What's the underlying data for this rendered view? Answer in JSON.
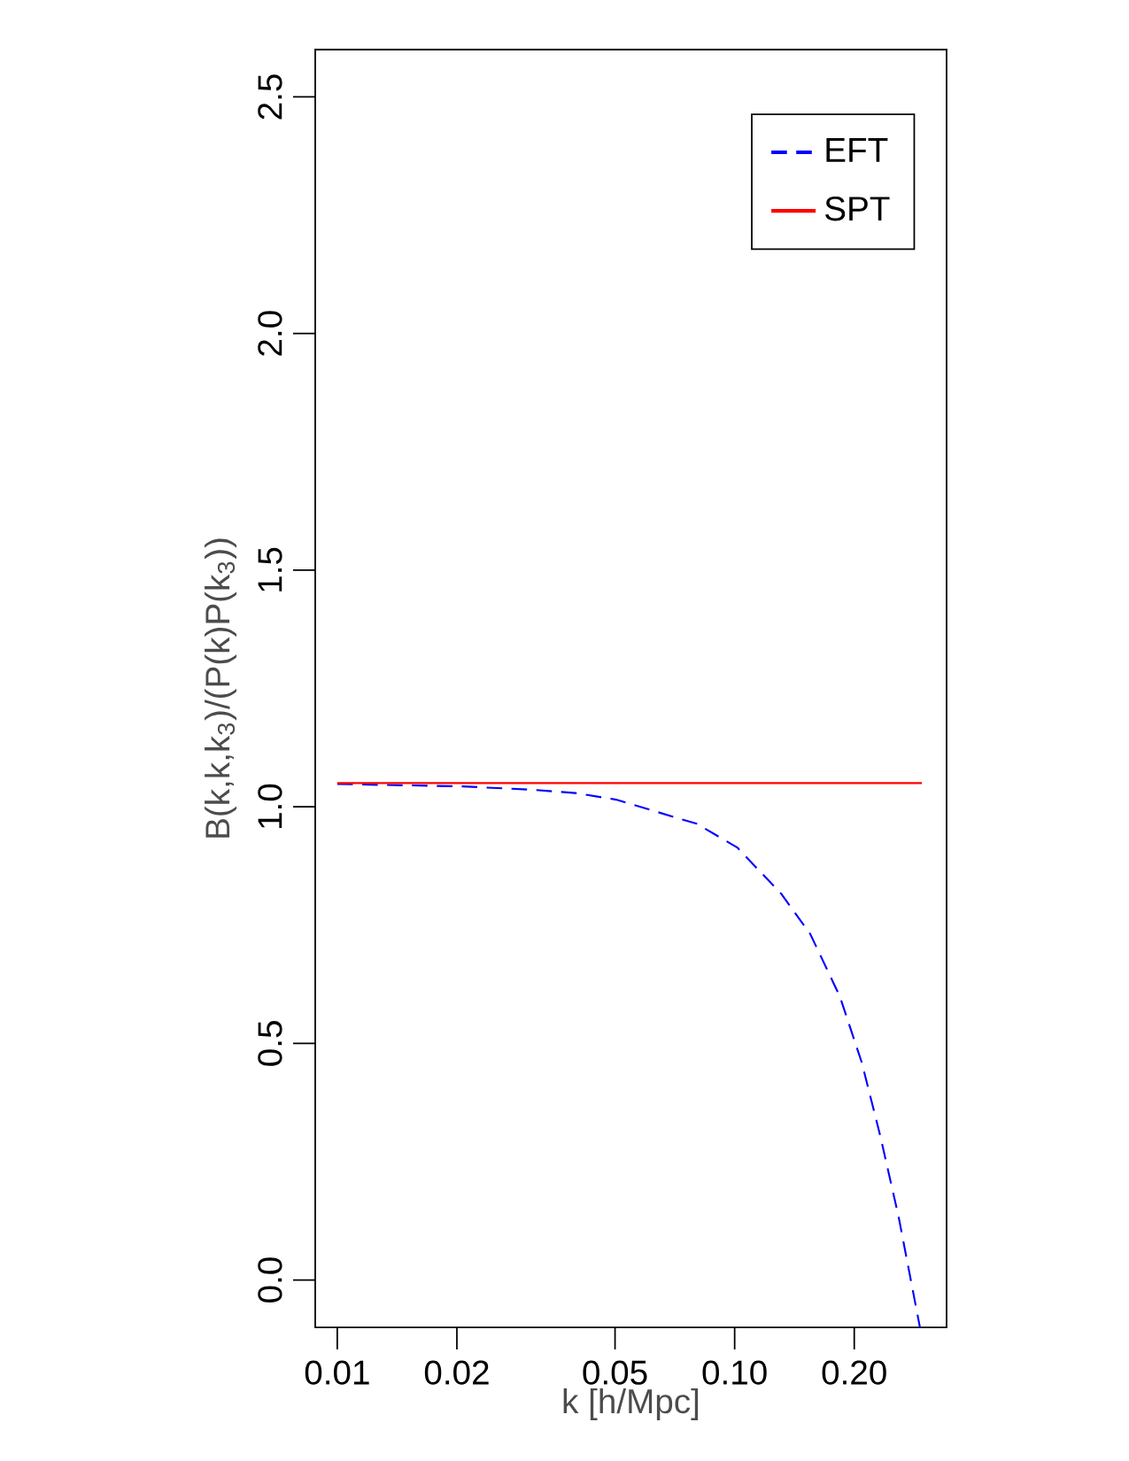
{
  "chart_data": {
    "type": "line",
    "xlabel": "k [h/Mpc]",
    "ylabel": "B(k,k,k$_{3}$)/(P(k)P(k$_{3}$))",
    "xlim": [
      0.0088,
      0.3415
    ],
    "ylim": [
      -0.1,
      2.6
    ],
    "xticks": [
      0.01,
      0.02,
      0.05,
      {
        "value": 0.1,
        "label": "0.10"
      },
      {
        "value": 0.2,
        "label": "0.20"
      }
    ],
    "yticks": [
      {
        "value": 0,
        "label": "0.0"
      },
      0.5,
      {
        "value": 1,
        "label": "1.0"
      },
      1.5,
      {
        "value": 2,
        "label": "2.0"
      },
      2.5
    ],
    "log": "x",
    "grid": false,
    "legend": "top right",
    "series": [
      {
        "name": "EFT",
        "color": "#0000ff",
        "line_style": "dashed",
        "x": [
          0.01,
          0.0207,
          0.0308,
          0.0397,
          0.0503,
          0.0803,
          0.1015,
          0.131,
          0.155,
          0.184,
          0.209,
          0.2326,
          0.2587,
          0.2926
        ],
        "values": [
          1.048,
          1.043,
          1.036,
          1.029,
          1.015,
          0.964,
          0.914,
          0.816,
          0.731,
          0.599,
          0.459,
          0.304,
          0.133,
          -0.1
        ]
      },
      {
        "name": "SPT",
        "color": "#ff0000",
        "line_style": "solid",
        "x": [
          0.01,
          0.296
        ],
        "values": [
          1.05,
          1.05
        ]
      }
    ]
  }
}
